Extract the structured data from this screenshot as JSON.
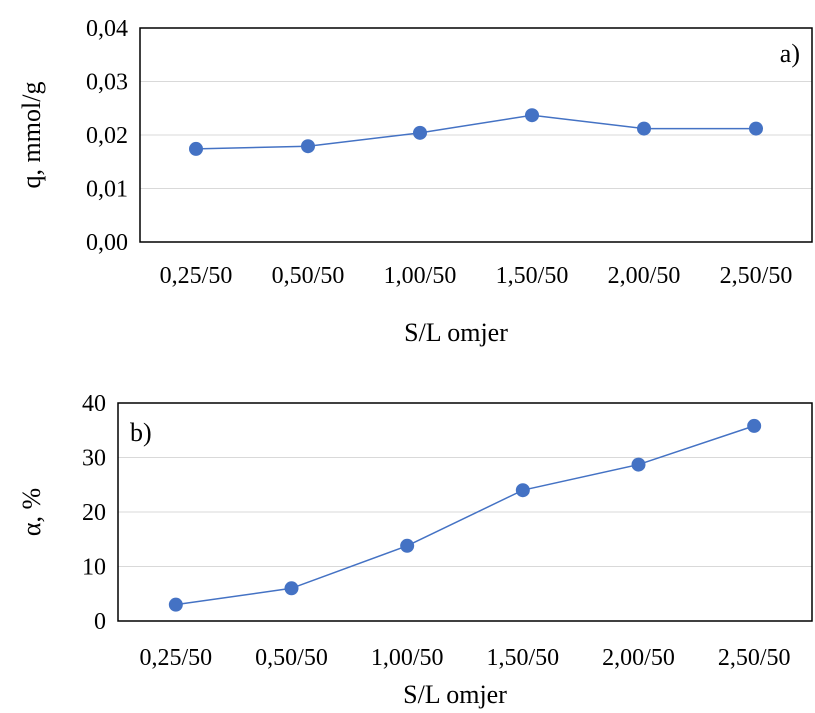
{
  "chart_data": [
    {
      "type": "line",
      "panel_label": "a)",
      "categories": [
        "0,25/50",
        "0,50/50",
        "1,00/50",
        "1,50/50",
        "2,00/50",
        "2,50/50"
      ],
      "series": [
        {
          "values": [
            0.0174,
            0.0179,
            0.0204,
            0.0237,
            0.0212,
            0.0212
          ]
        }
      ],
      "xlabel": "S/L omjer",
      "ylabel": "q, mmol/g",
      "ylim": [
        0,
        0.04
      ],
      "yticks": [
        "0,00",
        "0,01",
        "0,02",
        "0,03",
        "0,04"
      ],
      "grid": "horizontal",
      "color": "#4472c4"
    },
    {
      "type": "line",
      "panel_label": "b)",
      "categories": [
        "0,25/50",
        "0,50/50",
        "1,00/50",
        "1,50/50",
        "2,00/50",
        "2,50/50"
      ],
      "series": [
        {
          "values": [
            3.0,
            6.0,
            13.8,
            24.0,
            28.7,
            35.8
          ]
        }
      ],
      "xlabel": "S/L omjer",
      "ylabel": "α, %",
      "ylim": [
        0,
        40
      ],
      "yticks": [
        "0",
        "10",
        "20",
        "30",
        "40"
      ],
      "grid": "horizontal",
      "color": "#4472c4"
    }
  ]
}
